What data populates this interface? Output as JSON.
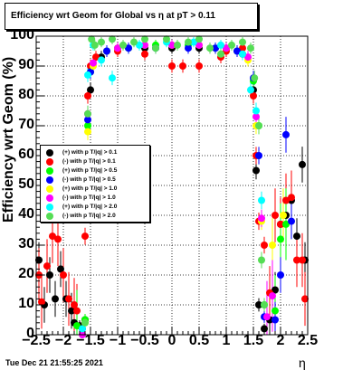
{
  "chart_data": {
    "type": "scatter",
    "title": "Efficiency wrt Geom for Global vs   η at pT > 0.11",
    "xlabel": "η",
    "ylabel": "Efficiency wrt Geom (%)",
    "xlim": [
      -2.5,
      2.5
    ],
    "ylim": [
      0,
      100
    ],
    "x_ticks": [
      "−2.5",
      "−2",
      "−1.5",
      "−1",
      "−0.5",
      "0",
      "0.5",
      "1",
      "1.5",
      "2",
      "2.5"
    ],
    "y_ticks": [
      "0",
      "10",
      "20",
      "30",
      "40",
      "50",
      "60",
      "70",
      "80",
      "90",
      "100"
    ],
    "grid": true,
    "legend_position": "left",
    "series": [
      {
        "name": "(+) with p T/|q| > 0.1",
        "color": "#000000",
        "x": [
          -2.45,
          -2.35,
          -2.25,
          -2.15,
          -2.05,
          -1.95,
          -1.85,
          -1.8,
          -1.7,
          -1.6,
          -1.55,
          -1.5,
          -1.3,
          -1.0,
          -0.5,
          0.0,
          0.5,
          1.0,
          1.3,
          1.5,
          1.55,
          1.6,
          1.7,
          1.8,
          1.9,
          2.0,
          2.1,
          2.2,
          2.3,
          2.4,
          2.45
        ],
        "y": [
          25,
          10,
          20,
          12,
          22,
          12,
          8,
          4,
          3,
          5,
          60,
          82,
          93,
          96,
          96,
          96,
          96,
          96,
          94,
          82,
          55,
          10,
          2,
          5,
          15,
          37,
          40,
          45,
          33,
          57,
          25
        ]
      },
      {
        "name": "(-) with p T/|q| > 0.1",
        "color": "#ff0000",
        "x": [
          -2.45,
          -2.4,
          -2.3,
          -2.2,
          -2.1,
          -2.0,
          -1.9,
          -1.8,
          -1.75,
          -1.6,
          -1.55,
          -1.5,
          -1.4,
          -1.0,
          -0.5,
          0.0,
          0.2,
          0.5,
          0.9,
          1.0,
          1.3,
          1.5,
          1.55,
          1.6,
          1.7,
          1.8,
          1.9,
          2.0,
          2.1,
          2.2,
          2.3,
          2.4,
          2.45
        ],
        "y": [
          20,
          11,
          23,
          33,
          32,
          20,
          12,
          10,
          8,
          33,
          80,
          90,
          93,
          95,
          94,
          90,
          90,
          90,
          93,
          95,
          96,
          80,
          60,
          38,
          30,
          14,
          40,
          37,
          45,
          46,
          25,
          25,
          12
        ]
      },
      {
        "name": "(+) with p T/|q| > 0.5",
        "color": "#00ff00",
        "x": [
          -1.75,
          -1.6,
          -1.55,
          -1.5,
          -1.2,
          -0.8,
          -0.3,
          0.3,
          0.8,
          1.2,
          1.5,
          1.6,
          1.7,
          1.9,
          2.0,
          2.1
        ],
        "y": [
          3,
          5,
          70,
          88,
          95,
          96,
          97,
          97,
          96,
          95,
          85,
          70,
          10,
          8,
          32,
          37
        ]
      },
      {
        "name": "(-) with p T/|q| > 0.5",
        "color": "#0000ff",
        "x": [
          -1.65,
          -1.55,
          -1.5,
          -1.2,
          -0.8,
          -0.3,
          0.3,
          0.8,
          1.2,
          1.5,
          1.6,
          1.7,
          1.9,
          2.0,
          2.1,
          2.2
        ],
        "y": [
          2,
          72,
          88,
          95,
          96,
          96,
          96,
          96,
          95,
          86,
          60,
          6,
          5,
          20,
          67,
          38
        ]
      },
      {
        "name": "(+) with p T/|q| > 1.0",
        "color": "#ffff00",
        "x": [
          -1.6,
          -1.55,
          -1.45,
          -1.0,
          -0.5,
          0.0,
          0.5,
          1.0,
          1.4,
          1.55,
          1.65,
          1.85,
          2.05
        ],
        "y": [
          4,
          68,
          90,
          96,
          97,
          97,
          97,
          96,
          92,
          70,
          38,
          30,
          40
        ]
      },
      {
        "name": "(-) with p T/|q| > 1.0",
        "color": "#ff00ff",
        "x": [
          -1.65,
          -1.55,
          -1.45,
          -1.0,
          -0.5,
          0.0,
          0.5,
          1.0,
          1.4,
          1.55,
          1.65,
          1.75,
          1.85
        ],
        "y": [
          0,
          74,
          91,
          96,
          97,
          97,
          97,
          96,
          93,
          73,
          39,
          6,
          13
        ]
      },
      {
        "name": "(+) with p T/|q| > 2.0",
        "color": "#00ffff",
        "x": [
          -1.65,
          -1.55,
          -1.45,
          -1.3,
          -1.1,
          -0.6,
          -0.1,
          0.4,
          0.9,
          1.3,
          1.45,
          1.55,
          1.65
        ],
        "y": [
          2,
          87,
          97,
          92,
          86,
          97,
          98,
          98,
          97,
          94,
          82,
          75,
          45
        ]
      },
      {
        "name": "(-) with p T/|q| > 2.0",
        "color": "#55dd55",
        "x": [
          -1.6,
          -1.55,
          -1.48,
          -1.42,
          -1.3,
          -1.1,
          -0.9,
          -0.7,
          -0.5,
          -0.3,
          -0.1,
          0.1,
          0.3,
          0.5,
          0.7,
          0.9,
          1.1,
          1.3,
          1.45,
          1.52,
          1.6,
          1.65,
          1.7
        ],
        "y": [
          4,
          74,
          99,
          97,
          98,
          99,
          97,
          98,
          99,
          96,
          99,
          97,
          98,
          99,
          96,
          94,
          97,
          98,
          96,
          86,
          70,
          25,
          10
        ]
      }
    ]
  },
  "footer": {
    "timestamp": "Tue Dec 21 21:55:25 2021"
  }
}
